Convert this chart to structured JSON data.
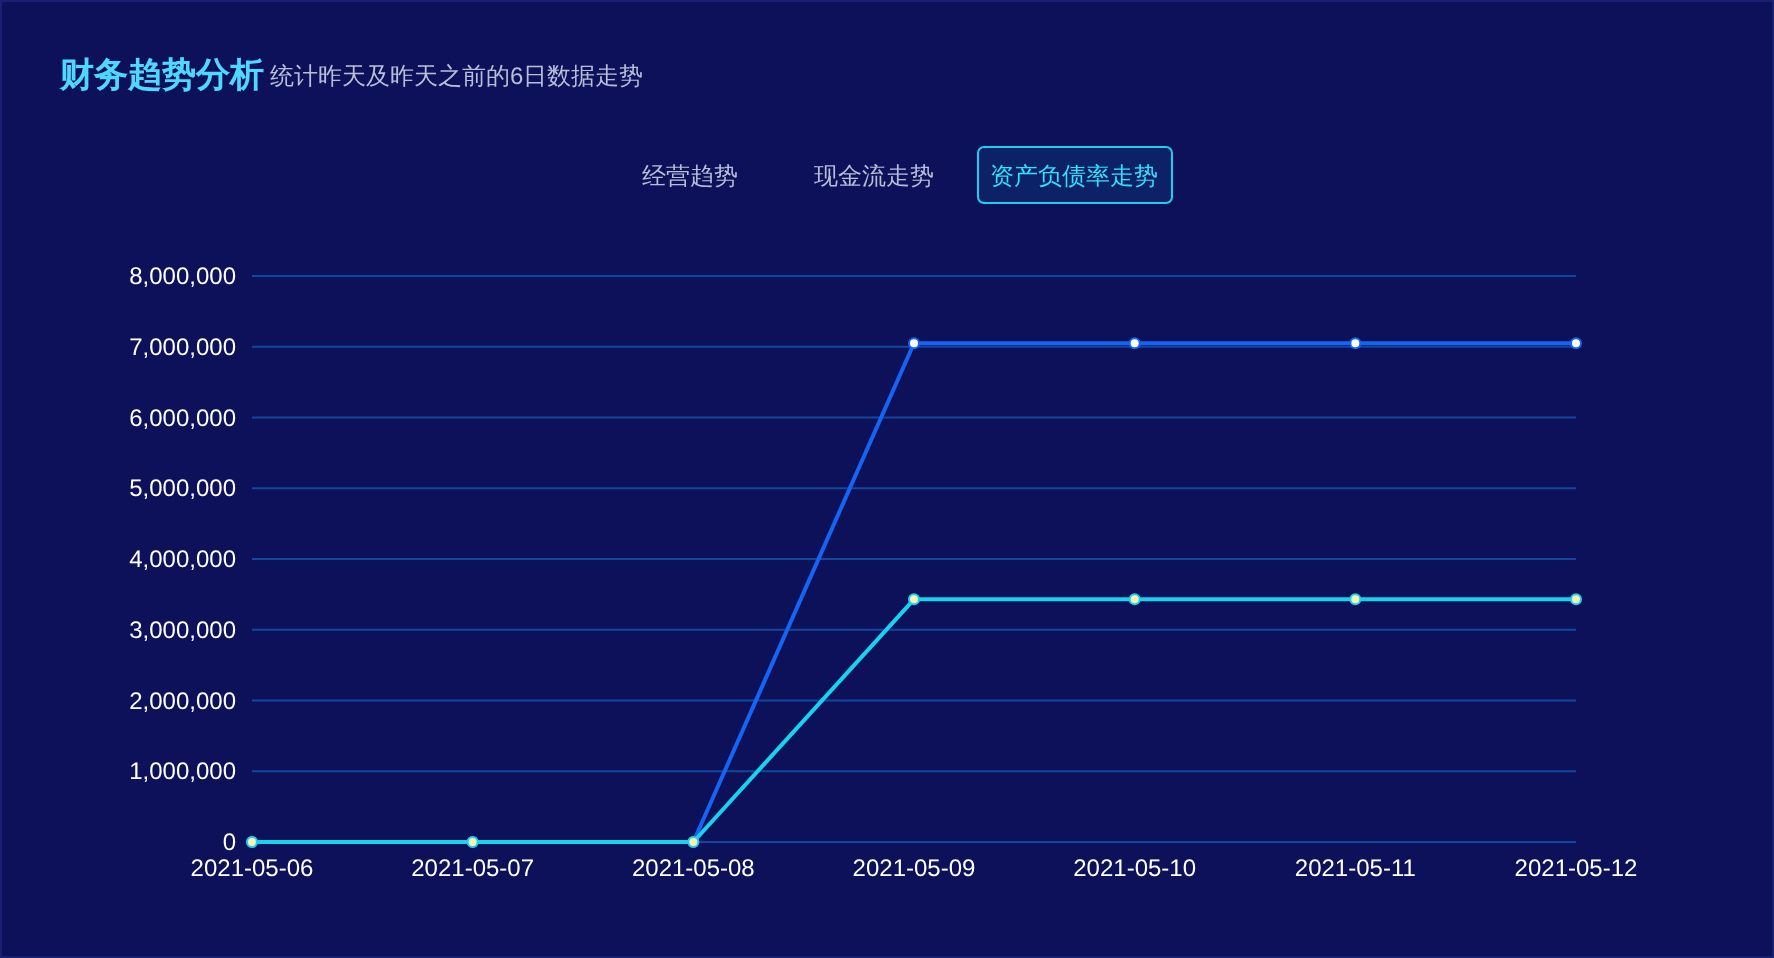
{
  "chart_data": {
    "type": "line",
    "title": "财务趋势分析",
    "subtitle": "统计昨天及昨天之前的6日数据走势",
    "annotations": [
      "经营趋势",
      "现金流走势",
      "资产负债率走势"
    ],
    "categories": [
      "2021-05-06",
      "2021-05-07",
      "2021-05-08",
      "2021-05-09",
      "2021-05-10",
      "2021-05-11",
      "2021-05-12"
    ],
    "series": [
      {
        "color": "#1565f5",
        "values": [
          0,
          0,
          0,
          7050000,
          7050000,
          7050000,
          7050000
        ]
      },
      {
        "color": "#16d3f0",
        "values": [
          0,
          0,
          0,
          3430000,
          3430000,
          3430000,
          3430000
        ]
      }
    ],
    "ylim": [
      0,
      8000000
    ],
    "yticks": [
      {
        "value": 0,
        "label": "0"
      },
      {
        "value": 1000000,
        "label": "1,000,000"
      },
      {
        "value": 2000000,
        "label": "2,000,000"
      },
      {
        "value": 3000000,
        "label": "3,000,000"
      },
      {
        "value": 4000000,
        "label": "4,000,000"
      },
      {
        "value": 5000000,
        "label": "5,000,000"
      },
      {
        "value": 6000000,
        "label": "6,000,000"
      },
      {
        "value": 7000000,
        "label": "7,000,000"
      },
      {
        "value": 8000000,
        "label": "8,000,000"
      }
    ],
    "grid": "y",
    "marker": "circle"
  }
}
